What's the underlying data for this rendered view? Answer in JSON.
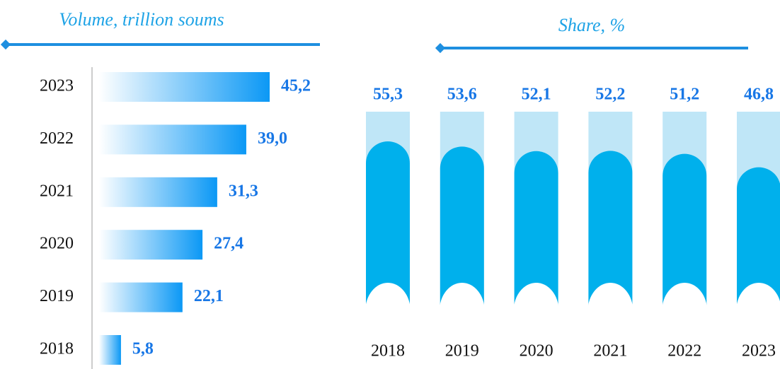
{
  "chart_data": [
    {
      "type": "bar",
      "orientation": "horizontal",
      "title": "Volume, trillion soums",
      "categories": [
        "2023",
        "2022",
        "2021",
        "2020",
        "2019",
        "2018"
      ],
      "values": [
        45.2,
        39.0,
        31.3,
        27.4,
        22.1,
        5.8
      ],
      "value_labels": [
        "45,2",
        "39,0",
        "31,3",
        "27,4",
        "22,1",
        "5,8"
      ],
      "color": "#0b98f5"
    },
    {
      "type": "bar",
      "orientation": "vertical",
      "title": "Share, %",
      "categories": [
        "2018",
        "2019",
        "2020",
        "2021",
        "2022",
        "2023"
      ],
      "values": [
        55.3,
        53.6,
        52.1,
        52.2,
        51.2,
        46.8
      ],
      "value_labels": [
        "55,3",
        "53,6",
        "52,1",
        "52,2",
        "51,2",
        "46,8"
      ],
      "color": "#00b0ec"
    }
  ]
}
